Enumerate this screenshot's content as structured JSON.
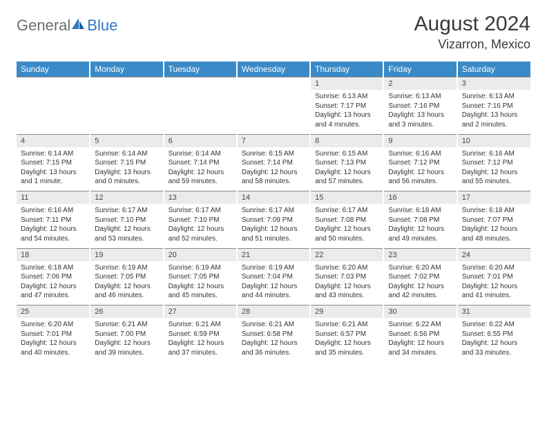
{
  "logo": {
    "general": "General",
    "blue": "Blue"
  },
  "title": "August 2024",
  "location": "Vizarron, Mexico",
  "colors": {
    "header_bg": "#3a8ac8",
    "header_text": "#ffffff",
    "daynum_bg": "#ebebeb",
    "border": "#888888",
    "logo_gray": "#6d6d6d",
    "logo_blue": "#2f78c3"
  },
  "daysOfWeek": [
    "Sunday",
    "Monday",
    "Tuesday",
    "Wednesday",
    "Thursday",
    "Friday",
    "Saturday"
  ],
  "weeks": [
    {
      "nums": [
        "",
        "",
        "",
        "",
        "1",
        "2",
        "3"
      ],
      "details": [
        "",
        "",
        "",
        "",
        "Sunrise: 6:13 AM\nSunset: 7:17 PM\nDaylight: 13 hours and 4 minutes.",
        "Sunrise: 6:13 AM\nSunset: 7:16 PM\nDaylight: 13 hours and 3 minutes.",
        "Sunrise: 6:13 AM\nSunset: 7:16 PM\nDaylight: 13 hours and 2 minutes."
      ]
    },
    {
      "nums": [
        "4",
        "5",
        "6",
        "7",
        "8",
        "9",
        "10"
      ],
      "details": [
        "Sunrise: 6:14 AM\nSunset: 7:15 PM\nDaylight: 13 hours and 1 minute.",
        "Sunrise: 6:14 AM\nSunset: 7:15 PM\nDaylight: 13 hours and 0 minutes.",
        "Sunrise: 6:14 AM\nSunset: 7:14 PM\nDaylight: 12 hours and 59 minutes.",
        "Sunrise: 6:15 AM\nSunset: 7:14 PM\nDaylight: 12 hours and 58 minutes.",
        "Sunrise: 6:15 AM\nSunset: 7:13 PM\nDaylight: 12 hours and 57 minutes.",
        "Sunrise: 6:16 AM\nSunset: 7:12 PM\nDaylight: 12 hours and 56 minutes.",
        "Sunrise: 6:16 AM\nSunset: 7:12 PM\nDaylight: 12 hours and 55 minutes."
      ]
    },
    {
      "nums": [
        "11",
        "12",
        "13",
        "14",
        "15",
        "16",
        "17"
      ],
      "details": [
        "Sunrise: 6:16 AM\nSunset: 7:11 PM\nDaylight: 12 hours and 54 minutes.",
        "Sunrise: 6:17 AM\nSunset: 7:10 PM\nDaylight: 12 hours and 53 minutes.",
        "Sunrise: 6:17 AM\nSunset: 7:10 PM\nDaylight: 12 hours and 52 minutes.",
        "Sunrise: 6:17 AM\nSunset: 7:09 PM\nDaylight: 12 hours and 51 minutes.",
        "Sunrise: 6:17 AM\nSunset: 7:08 PM\nDaylight: 12 hours and 50 minutes.",
        "Sunrise: 6:18 AM\nSunset: 7:08 PM\nDaylight: 12 hours and 49 minutes.",
        "Sunrise: 6:18 AM\nSunset: 7:07 PM\nDaylight: 12 hours and 48 minutes."
      ]
    },
    {
      "nums": [
        "18",
        "19",
        "20",
        "21",
        "22",
        "23",
        "24"
      ],
      "details": [
        "Sunrise: 6:18 AM\nSunset: 7:06 PM\nDaylight: 12 hours and 47 minutes.",
        "Sunrise: 6:19 AM\nSunset: 7:05 PM\nDaylight: 12 hours and 46 minutes.",
        "Sunrise: 6:19 AM\nSunset: 7:05 PM\nDaylight: 12 hours and 45 minutes.",
        "Sunrise: 6:19 AM\nSunset: 7:04 PM\nDaylight: 12 hours and 44 minutes.",
        "Sunrise: 6:20 AM\nSunset: 7:03 PM\nDaylight: 12 hours and 43 minutes.",
        "Sunrise: 6:20 AM\nSunset: 7:02 PM\nDaylight: 12 hours and 42 minutes.",
        "Sunrise: 6:20 AM\nSunset: 7:01 PM\nDaylight: 12 hours and 41 minutes."
      ]
    },
    {
      "nums": [
        "25",
        "26",
        "27",
        "28",
        "29",
        "30",
        "31"
      ],
      "details": [
        "Sunrise: 6:20 AM\nSunset: 7:01 PM\nDaylight: 12 hours and 40 minutes.",
        "Sunrise: 6:21 AM\nSunset: 7:00 PM\nDaylight: 12 hours and 39 minutes.",
        "Sunrise: 6:21 AM\nSunset: 6:59 PM\nDaylight: 12 hours and 37 minutes.",
        "Sunrise: 6:21 AM\nSunset: 6:58 PM\nDaylight: 12 hours and 36 minutes.",
        "Sunrise: 6:21 AM\nSunset: 6:57 PM\nDaylight: 12 hours and 35 minutes.",
        "Sunrise: 6:22 AM\nSunset: 6:56 PM\nDaylight: 12 hours and 34 minutes.",
        "Sunrise: 6:22 AM\nSunset: 6:55 PM\nDaylight: 12 hours and 33 minutes."
      ]
    }
  ]
}
